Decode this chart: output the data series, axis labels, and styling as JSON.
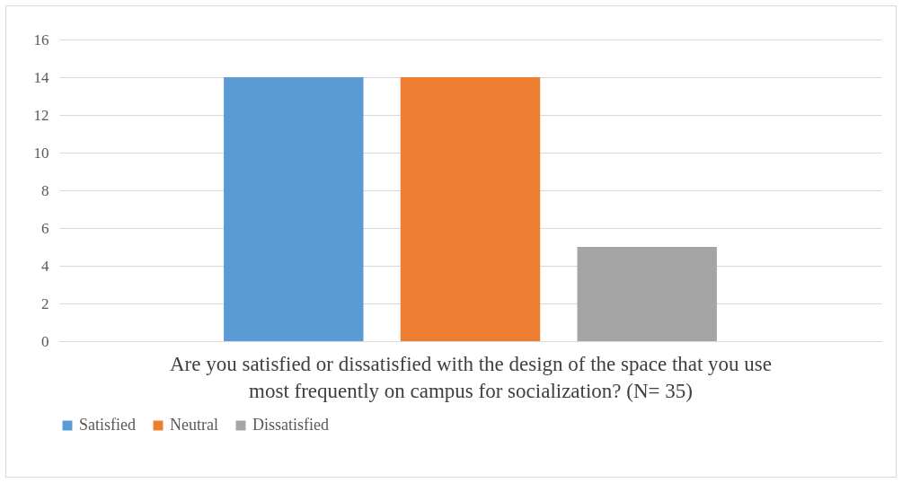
{
  "chart_data": {
    "type": "bar",
    "xlabel": "Are you satisfied or dissatisfied with the design of the space that you use most frequently on campus for socialization? (N= 35)",
    "categories": [
      null
    ],
    "series": [
      {
        "name": "Satisfied",
        "color": "#5b9bd5",
        "values": [
          14
        ]
      },
      {
        "name": "Neutral",
        "color": "#ed7d31",
        "values": [
          14
        ]
      },
      {
        "name": "Dissatisfied",
        "color": "#a5a5a5",
        "values": [
          5
        ]
      }
    ],
    "ylim": [
      0,
      16
    ],
    "yticks": [
      0,
      2,
      4,
      6,
      8,
      10,
      12,
      14,
      16
    ],
    "grid": "y",
    "legend": "bottom"
  }
}
